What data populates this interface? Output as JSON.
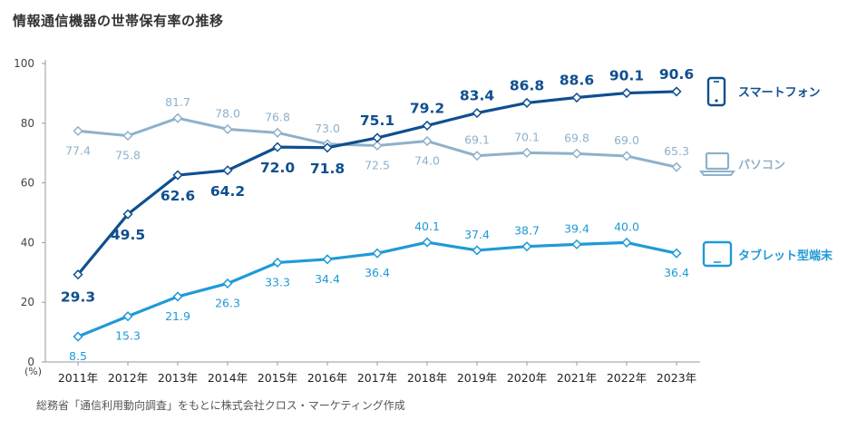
{
  "title": "情報通信機器の世帯保有率の推移",
  "source_note": "総務省「通信利用動向調査」をもとに株式会社クロス・マーケティング作成",
  "chart_data": {
    "type": "line",
    "title": "情報通信機器の世帯保有率の推移",
    "unit_label": "(%)",
    "ylim": [
      0,
      100
    ],
    "yticks": [
      0,
      20,
      40,
      60,
      80,
      100
    ],
    "categories": [
      "2011年",
      "2012年",
      "2013年",
      "2014年",
      "2015年",
      "2016年",
      "2017年",
      "2018年",
      "2019年",
      "2020年",
      "2021年",
      "2022年",
      "2023年"
    ],
    "series": [
      {
        "name": "スマートフォン",
        "key": "smartphone",
        "color": "#0f4f8f",
        "icon": "smartphone-icon",
        "values": [
          29.3,
          49.5,
          62.6,
          64.2,
          72.0,
          71.8,
          75.1,
          79.2,
          83.4,
          86.8,
          88.6,
          90.1,
          90.6
        ],
        "labels": [
          "29.3",
          "49.5",
          "62.6",
          "64.2",
          "72.0",
          "71.8",
          "75.1",
          "79.2",
          "83.4",
          "86.8",
          "88.6",
          "90.1",
          "90.6"
        ]
      },
      {
        "name": "パソコン",
        "key": "pc",
        "color": "#8fb1ca",
        "icon": "laptop-icon",
        "values": [
          77.4,
          75.8,
          81.7,
          78.0,
          76.8,
          73.0,
          72.5,
          74.0,
          69.1,
          70.1,
          69.8,
          69.0,
          65.3
        ],
        "labels": [
          "77.4",
          "75.8",
          "81.7",
          "78.0",
          "76.8",
          "73.0",
          "72.5",
          "74.0",
          "69.1",
          "70.1",
          "69.8",
          "69.0",
          "65.3"
        ]
      },
      {
        "name": "タブレット型端末",
        "key": "tablet",
        "color": "#1f9ad6",
        "icon": "tablet-icon",
        "values": [
          8.5,
          15.3,
          21.9,
          26.3,
          33.3,
          34.4,
          36.4,
          40.1,
          37.4,
          38.7,
          39.4,
          40.0,
          36.4
        ],
        "labels": [
          "8.5",
          "15.3",
          "21.9",
          "26.3",
          "33.3",
          "34.4",
          "36.4",
          "40.1",
          "37.4",
          "38.7",
          "39.4",
          "40.0",
          "36.4"
        ]
      }
    ]
  }
}
